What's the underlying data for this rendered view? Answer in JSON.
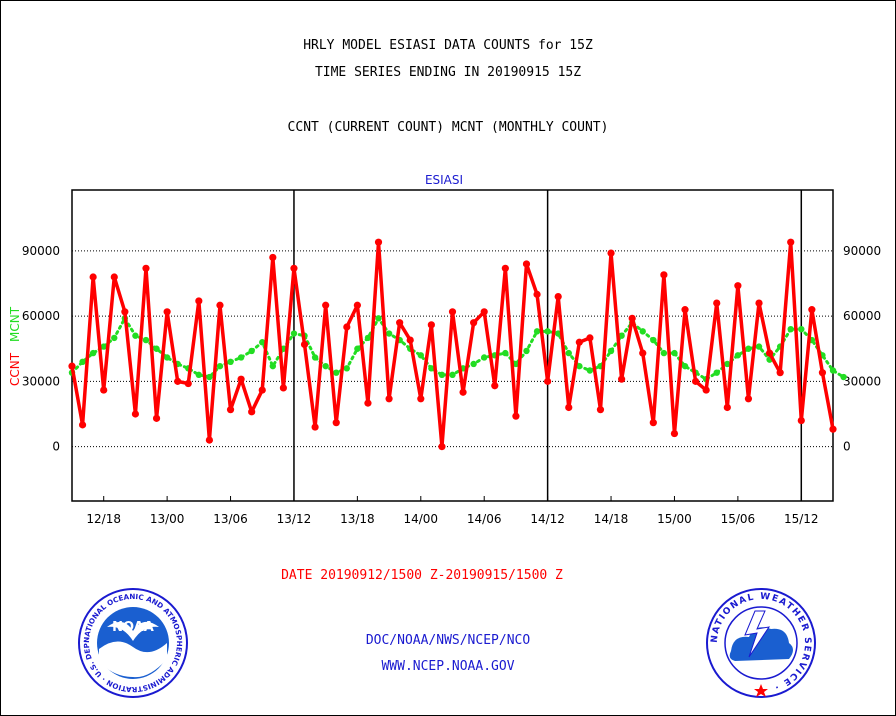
{
  "titles": {
    "line1": "HRLY MODEL ESIASI DATA COUNTS for 15Z",
    "line2": "TIME SERIES ENDING IN 20190915 15Z",
    "line3": "CCNT (CURRENT COUNT) MCNT (MONTHLY COUNT)"
  },
  "chart_data": {
    "type": "line",
    "title": "ESIASI",
    "ylabel_left_ccnt": "CCNT",
    "ylabel_left_mcnt": "MCNT",
    "xlabel": "DATE 20190912/1500 Z-20190915/1500 Z",
    "ylim": [
      -25000,
      118000
    ],
    "yticks": [
      0,
      30000,
      60000,
      90000
    ],
    "ytick_labels": [
      "0",
      "30000",
      "60000",
      "90000"
    ],
    "x_range_hours": [
      0,
      72
    ],
    "xticks_hours": [
      3,
      9,
      15,
      21,
      27,
      33,
      39,
      45,
      51,
      57,
      63,
      69
    ],
    "xtick_labels": [
      "12/18",
      "13/00",
      "13/06",
      "13/12",
      "13/18",
      "14/00",
      "14/06",
      "14/12",
      "14/18",
      "15/00",
      "15/06",
      "15/12"
    ],
    "day_boundaries_hours": [
      21,
      45,
      69
    ],
    "grid": "horizontal dotted",
    "series": [
      {
        "name": "CCNT",
        "color": "#ff0000",
        "values": [
          37000,
          10000,
          78000,
          26000,
          78000,
          62000,
          15000,
          82000,
          13000,
          62000,
          30000,
          29000,
          67000,
          3000,
          65000,
          17000,
          31000,
          16000,
          26000,
          87000,
          27000,
          82000,
          47000,
          9000,
          65000,
          11000,
          55000,
          65000,
          20000,
          94000,
          22000,
          57000,
          49000,
          22000,
          56000,
          0,
          62000,
          25000,
          57000,
          62000,
          28000,
          82000,
          14000,
          84000,
          70000,
          30000,
          69000,
          18000,
          48000,
          50000,
          17000,
          89000,
          31000,
          59000,
          43000,
          11000,
          79000,
          6000,
          63000,
          30000,
          26000,
          66000,
          18000,
          74000,
          22000,
          66000,
          43000,
          34000,
          94000,
          12000,
          63000,
          34000,
          8000
        ]
      },
      {
        "name": "MCNT",
        "color": "#22dd22",
        "values": [
          34000,
          39000,
          43000,
          46000,
          50000,
          59000,
          51000,
          49000,
          45000,
          41000,
          38000,
          36000,
          33000,
          32000,
          37000,
          39000,
          41000,
          44000,
          48000,
          37000,
          45000,
          52000,
          51000,
          41000,
          37000,
          34000,
          36000,
          45000,
          50000,
          59000,
          52000,
          49000,
          45000,
          42000,
          36000,
          33000,
          33000,
          36000,
          38000,
          41000,
          42000,
          43000,
          38000,
          44000,
          53000,
          53000,
          52000,
          43000,
          37000,
          35000,
          37000,
          44000,
          51000,
          57000,
          53000,
          49000,
          43000,
          43000,
          37000,
          34000,
          31000,
          34000,
          38000,
          42000,
          45000,
          46000,
          40000,
          46000,
          54000,
          54000,
          49000,
          42000,
          35000,
          32000
        ]
      }
    ]
  },
  "footer": {
    "line1": "DOC/NOAA/NWS/NCEP/NCO",
    "line2": "WWW.NCEP.NOAA.GOV"
  },
  "logos": {
    "noaa_badge": "NOAA",
    "noaa_ring": "NATIONAL OCEANIC AND ATMOSPHERIC ADMINISTRATION · U.S. DEPARTMENT OF COMMERCE ·",
    "nws_ring": "NATIONAL WEATHER SERVICE ·"
  },
  "colors": {
    "ccnt": "#ff0000",
    "mcnt": "#22dd22",
    "title_blue": "#1a1ad0",
    "date_red": "#ff0000"
  }
}
